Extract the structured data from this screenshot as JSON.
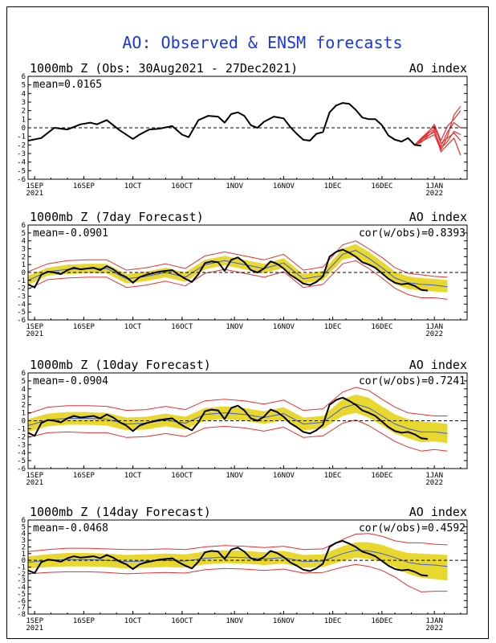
{
  "title": "AO: Observed & ENSM forecasts",
  "colors": {
    "title": "#1a36e8",
    "obs": "#000000",
    "spread": "#e8d82e",
    "member": "#e83030",
    "ensmean": "#3c5be0",
    "frame": "#000000"
  },
  "x_ticks": [
    {
      "day": 2,
      "label": "1SEP",
      "year": "2021"
    },
    {
      "day": 17,
      "label": "16SEP",
      "year": ""
    },
    {
      "day": 32,
      "label": "1OCT",
      "year": ""
    },
    {
      "day": 47,
      "label": "16OCT",
      "year": ""
    },
    {
      "day": 63,
      "label": "1NOV",
      "year": ""
    },
    {
      "day": 78,
      "label": "16NOV",
      "year": ""
    },
    {
      "day": 93,
      "label": "1DEC",
      "year": ""
    },
    {
      "day": 108,
      "label": "16DEC",
      "year": ""
    },
    {
      "day": 124,
      "label": "1JAN",
      "year": "2022"
    }
  ],
  "panels": [
    {
      "id": "obs",
      "left": "1000mb Z (Obs: 30Aug2021 - 27Dec2021)",
      "right": "AO index",
      "mean": "mean=0.0165",
      "cor": "",
      "ylim": [
        -6,
        6
      ],
      "y_ticks": [
        -6,
        -5,
        -4,
        -3,
        -2,
        -1,
        0,
        1,
        2,
        3,
        4,
        5,
        6
      ],
      "type": "observed"
    },
    {
      "id": "d7",
      "left": "1000mb Z (7day Forecast)",
      "right": "AO index",
      "mean": "mean=-0.0901",
      "cor": "cor(w/obs)=0.8393",
      "ylim": [
        -6,
        6
      ],
      "y_ticks": [
        -6,
        -5,
        -4,
        -3,
        -2,
        -1,
        0,
        1,
        2,
        3,
        4,
        5,
        6
      ],
      "type": "forecast",
      "lead": 7
    },
    {
      "id": "d10",
      "left": "1000mb Z (10day Forecast)",
      "right": "AO index",
      "mean": "mean=-0.0904",
      "cor": "cor(w/obs)=0.7241",
      "ylim": [
        -6,
        6
      ],
      "y_ticks": [
        -6,
        -5,
        -4,
        -3,
        -2,
        -1,
        0,
        1,
        2,
        3,
        4,
        5,
        6
      ],
      "type": "forecast",
      "lead": 10
    },
    {
      "id": "d14",
      "left": "1000mb Z (14day Forecast)",
      "right": "AO index",
      "mean": "mean=-0.0468",
      "cor": "cor(w/obs)=0.4592",
      "ylim": [
        -8,
        6
      ],
      "y_ticks": [
        -8,
        -7,
        -6,
        -5,
        -4,
        -3,
        -2,
        -1,
        0,
        1,
        2,
        3,
        4,
        5,
        6
      ],
      "type": "forecast",
      "lead": 14
    }
  ],
  "chart_data": {
    "type": "line",
    "title": "AO: Observed & ENSM forecasts",
    "xlabel": "",
    "ylabel": "AO index",
    "xlim": [
      "30Aug2021",
      "10Jan2022"
    ],
    "x_anchor": "30Aug2021",
    "observed": {
      "days": [
        0,
        4,
        8,
        12,
        16,
        19,
        21,
        24,
        26,
        28,
        32,
        34,
        37,
        40,
        44,
        47,
        49,
        52,
        55,
        58,
        60,
        62,
        64,
        66,
        68,
        70,
        72,
        75,
        78,
        80,
        82,
        84,
        86,
        88,
        90,
        92,
        94,
        96,
        98,
        100,
        102,
        104,
        106,
        108,
        110,
        112,
        114,
        116,
        118,
        120
      ],
      "values": [
        -1.5,
        -1.2,
        0,
        -0.2,
        0.4,
        0.6,
        0.4,
        0.9,
        0.3,
        -0.3,
        -1.3,
        -0.8,
        -0.2,
        -0.1,
        0.2,
        -0.8,
        -1.1,
        0.9,
        1.4,
        1.3,
        0.6,
        1.6,
        1.8,
        1.4,
        0.3,
        0,
        0.7,
        1.3,
        1.1,
        0.1,
        -0.7,
        -1.4,
        -1.5,
        -0.7,
        -0.5,
        1.8,
        2.6,
        2.9,
        2.8,
        2.1,
        1.2,
        1.0,
        1.0,
        0.3,
        -0.9,
        -1.4,
        -1.6,
        -1.2,
        -2.0,
        -2.1
      ]
    },
    "forecast_obs_panels": {
      "days": [
        0,
        2,
        4,
        6,
        8,
        10,
        12,
        14,
        16,
        18,
        20,
        22,
        24,
        26,
        28,
        30,
        32,
        34,
        36,
        38,
        40,
        42,
        44,
        46,
        48,
        50,
        52,
        54,
        56,
        58,
        60,
        62,
        64,
        66,
        68,
        70,
        72,
        74,
        76,
        78,
        80,
        82,
        84,
        86,
        88,
        90,
        92,
        94,
        96,
        98,
        100,
        102,
        104,
        106,
        108,
        110,
        112,
        114,
        116,
        118,
        120,
        122
      ],
      "values": [
        -1.5,
        -1.9,
        -0.3,
        0.1,
        0,
        -0.2,
        0.3,
        0.6,
        0.4,
        0.5,
        0.6,
        0.3,
        0.8,
        0.4,
        -0.2,
        -0.6,
        -1.3,
        -0.6,
        -0.3,
        -0.1,
        0.1,
        0.2,
        0.3,
        -0.3,
        -0.8,
        -1.2,
        -0.2,
        1.2,
        1.4,
        1.3,
        0.2,
        1.6,
        1.9,
        1.3,
        0.3,
        0,
        0.5,
        1.4,
        1.1,
        0.5,
        -0.3,
        -0.8,
        -1.4,
        -1.6,
        -1.2,
        -0.5,
        2.0,
        2.6,
        2.9,
        2.5,
        2.0,
        1.3,
        1.0,
        0.6,
        -0.1,
        -0.8,
        -1.3,
        -1.5,
        -1.4,
        -1.7,
        -2.2,
        -2.3
      ]
    },
    "ensemble_final": {
      "days": [
        118,
        120,
        122,
        124,
        126,
        128,
        130,
        132
      ],
      "members": [
        [
          -2.0,
          -1.6,
          -1.2,
          -0.8,
          -2.6,
          -1.0,
          1.5,
          2.5
        ],
        [
          -2.0,
          -1.4,
          -0.9,
          -0.5,
          -2.2,
          -0.5,
          0.6,
          0.0
        ],
        [
          -2.0,
          -1.2,
          -0.5,
          0.2,
          -1.8,
          -1.2,
          -0.6,
          -1.5
        ],
        [
          -2.0,
          -1.5,
          -0.7,
          -0.1,
          -2.8,
          -2.0,
          -1.2,
          -3.2
        ],
        [
          -2.0,
          -1.3,
          -0.6,
          0.4,
          -1.5,
          0.2,
          1.0,
          2.0
        ],
        [
          -2.0,
          -1.7,
          -1.0,
          -0.3,
          -2.4,
          -1.6,
          -0.4,
          -0.8
        ]
      ]
    },
    "forecast_panels": [
      {
        "lead": "7day",
        "days": [
          0,
          6,
          12,
          18,
          24,
          30,
          36,
          42,
          48,
          54,
          60,
          66,
          72,
          78,
          84,
          90,
          96,
          100,
          104,
          108,
          112,
          116,
          120,
          124,
          128
        ],
        "ens_mean": [
          -1.0,
          0.1,
          0.4,
          0.5,
          0.5,
          -0.8,
          -0.5,
          0.0,
          -0.6,
          1.0,
          1.5,
          1.0,
          0.5,
          1.2,
          -0.8,
          -0.4,
          2.3,
          2.8,
          1.8,
          0.6,
          -0.7,
          -1.3,
          -1.5,
          -1.6,
          -1.8
        ],
        "band_low": [
          -1.6,
          -0.4,
          -0.2,
          -0.1,
          -0.1,
          -1.4,
          -1.1,
          -0.6,
          -1.2,
          0.4,
          0.9,
          0.4,
          -0.1,
          0.6,
          -1.4,
          -1.0,
          1.6,
          2.0,
          1.0,
          -0.2,
          -1.5,
          -2.1,
          -2.3,
          -2.4,
          -2.5
        ],
        "band_high": [
          -0.4,
          0.6,
          1.0,
          1.1,
          1.1,
          -0.2,
          0.1,
          0.6,
          0.0,
          1.6,
          2.1,
          1.6,
          1.1,
          1.8,
          -0.2,
          0.2,
          3.0,
          3.6,
          2.6,
          1.4,
          0.1,
          -0.5,
          -0.7,
          -0.8,
          -1.0
        ],
        "min": [
          -2.1,
          -0.9,
          -0.7,
          -0.6,
          -0.6,
          -1.9,
          -1.6,
          -1.1,
          -1.7,
          -0.1,
          0.4,
          -0.1,
          -0.6,
          0.1,
          -1.9,
          -1.5,
          1.1,
          1.5,
          0.5,
          -0.7,
          -2.0,
          -2.8,
          -3.2,
          -3.2,
          -3.4
        ],
        "max": [
          0.1,
          1.1,
          1.5,
          1.6,
          1.6,
          0.3,
          0.6,
          1.1,
          0.5,
          2.1,
          2.6,
          2.1,
          1.6,
          2.3,
          0.3,
          0.7,
          3.5,
          4.0,
          3.0,
          1.9,
          0.6,
          -0.1,
          -0.3,
          -0.5,
          -0.6
        ]
      },
      {
        "lead": "10day",
        "days": [
          0,
          6,
          12,
          18,
          24,
          30,
          36,
          42,
          48,
          54,
          60,
          66,
          72,
          78,
          84,
          90,
          96,
          100,
          104,
          108,
          112,
          116,
          120,
          124,
          128
        ],
        "ens_mean": [
          -0.6,
          0.1,
          0.3,
          0.3,
          0.2,
          -0.4,
          -0.3,
          0.1,
          -0.3,
          0.8,
          1.0,
          0.8,
          0.4,
          0.9,
          -0.4,
          -0.2,
          1.6,
          2.1,
          1.6,
          0.6,
          -0.4,
          -1.0,
          -1.4,
          -1.4,
          -1.6
        ],
        "band_low": [
          -1.4,
          -0.7,
          -0.5,
          -0.5,
          -0.6,
          -1.2,
          -1.1,
          -0.7,
          -1.1,
          0.0,
          0.2,
          0.0,
          -0.4,
          0.1,
          -1.2,
          -1.0,
          0.6,
          1.0,
          0.4,
          -0.6,
          -1.6,
          -2.2,
          -2.7,
          -2.6,
          -2.8
        ],
        "band_high": [
          0.2,
          0.9,
          1.1,
          1.1,
          1.0,
          0.4,
          0.5,
          0.9,
          0.5,
          1.6,
          1.8,
          1.6,
          1.2,
          1.7,
          0.4,
          0.6,
          2.7,
          3.3,
          2.9,
          1.8,
          0.8,
          0.2,
          -0.1,
          -0.2,
          -0.4
        ],
        "min": [
          -2.1,
          -1.5,
          -1.4,
          -1.5,
          -1.5,
          -2.1,
          -2.0,
          -1.6,
          -2.0,
          -0.9,
          -0.7,
          -0.9,
          -1.3,
          -0.8,
          -2.1,
          -1.9,
          -0.3,
          0.1,
          -0.6,
          -1.6,
          -2.6,
          -3.3,
          -3.8,
          -3.6,
          -3.8
        ],
        "max": [
          0.9,
          1.7,
          1.9,
          1.9,
          1.8,
          1.3,
          1.4,
          1.8,
          1.4,
          2.5,
          2.7,
          2.5,
          2.1,
          2.6,
          1.3,
          1.5,
          3.6,
          4.2,
          3.8,
          2.7,
          1.7,
          1.0,
          0.8,
          0.6,
          0.6
        ]
      },
      {
        "lead": "14day",
        "days": [
          0,
          6,
          12,
          18,
          24,
          30,
          36,
          42,
          48,
          54,
          60,
          66,
          72,
          78,
          84,
          90,
          96,
          100,
          104,
          108,
          112,
          116,
          120,
          124,
          128
        ],
        "ens_mean": [
          -0.3,
          0.0,
          0.1,
          0.1,
          0.0,
          -0.2,
          -0.1,
          0.0,
          -0.1,
          0.3,
          0.5,
          0.4,
          0.2,
          0.4,
          -0.2,
          -0.1,
          1.0,
          1.5,
          1.4,
          1.0,
          0.4,
          -0.3,
          -0.6,
          -0.7,
          -0.9
        ],
        "band_low": [
          -1.2,
          -1.0,
          -0.9,
          -0.9,
          -1.0,
          -1.2,
          -1.1,
          -1.0,
          -1.1,
          -0.6,
          -0.4,
          -0.5,
          -0.7,
          -0.5,
          -1.1,
          -1.0,
          -0.1,
          0.4,
          0.2,
          -0.2,
          -1.0,
          -2.0,
          -2.6,
          -2.8,
          -3.0
        ],
        "band_high": [
          0.6,
          0.9,
          1.1,
          1.1,
          1.0,
          0.8,
          0.9,
          1.0,
          0.9,
          1.3,
          1.5,
          1.4,
          1.2,
          1.4,
          0.8,
          0.9,
          2.1,
          2.7,
          2.7,
          2.3,
          1.6,
          1.1,
          1.0,
          0.9,
          0.8
        ],
        "min": [
          -2.0,
          -1.8,
          -1.7,
          -1.7,
          -1.8,
          -2.0,
          -1.9,
          -1.8,
          -1.9,
          -1.4,
          -1.2,
          -1.3,
          -1.5,
          -1.3,
          -1.9,
          -1.8,
          -1.0,
          -0.6,
          -0.9,
          -1.5,
          -2.5,
          -3.8,
          -4.7,
          -4.6,
          -4.6
        ],
        "max": [
          1.3,
          1.6,
          1.8,
          1.8,
          1.7,
          1.6,
          1.6,
          1.7,
          1.6,
          2.0,
          2.2,
          2.1,
          1.9,
          2.1,
          1.6,
          1.7,
          3.1,
          3.9,
          4.0,
          3.6,
          2.9,
          2.6,
          2.6,
          2.4,
          2.3
        ]
      }
    ]
  }
}
